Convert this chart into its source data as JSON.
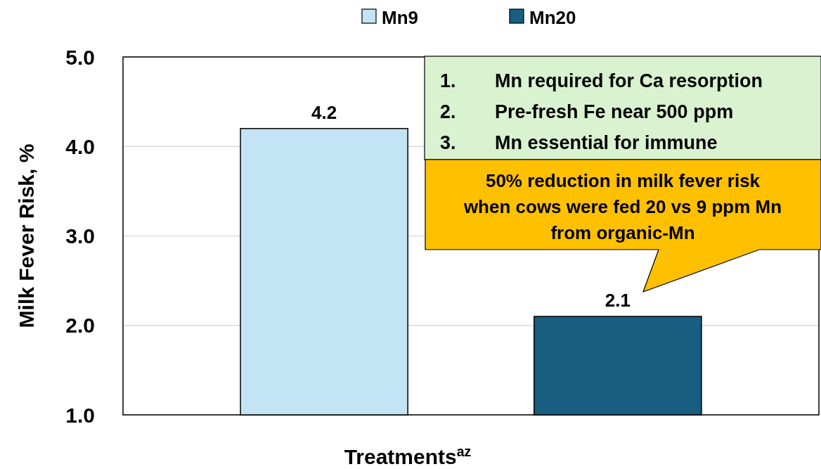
{
  "chart_data": {
    "type": "bar",
    "categories": [
      null,
      null
    ],
    "series": [
      {
        "name": "Mn9",
        "color": "#c3e4f4",
        "values": [
          4.2,
          null
        ]
      },
      {
        "name": "Mn20",
        "color": "#175e80",
        "values": [
          null,
          2.1
        ]
      }
    ],
    "ylabel": "Milk Fever Risk, %",
    "xlabel": "Treatments$^{az}$",
    "ylim": [
      1,
      5
    ],
    "yticks": [
      {
        "value": 1,
        "label": "1.0"
      },
      {
        "value": 2,
        "label": "2.0"
      },
      {
        "value": 3,
        "label": "3.0"
      },
      {
        "value": 4,
        "label": "4.0"
      },
      {
        "value": 5,
        "label": "5.0"
      }
    ],
    "grid": "y",
    "legend": "top",
    "data_labels": true,
    "annotations": [
      "1. Mn required for Ca resorption",
      "2. Pre-fresh Fe near 500 ppm",
      "3. Mn essential for immune",
      "50% reduction in milk fever risk when cows were fed 20 vs 9 ppm Mn from organic-Mn"
    ]
  }
}
